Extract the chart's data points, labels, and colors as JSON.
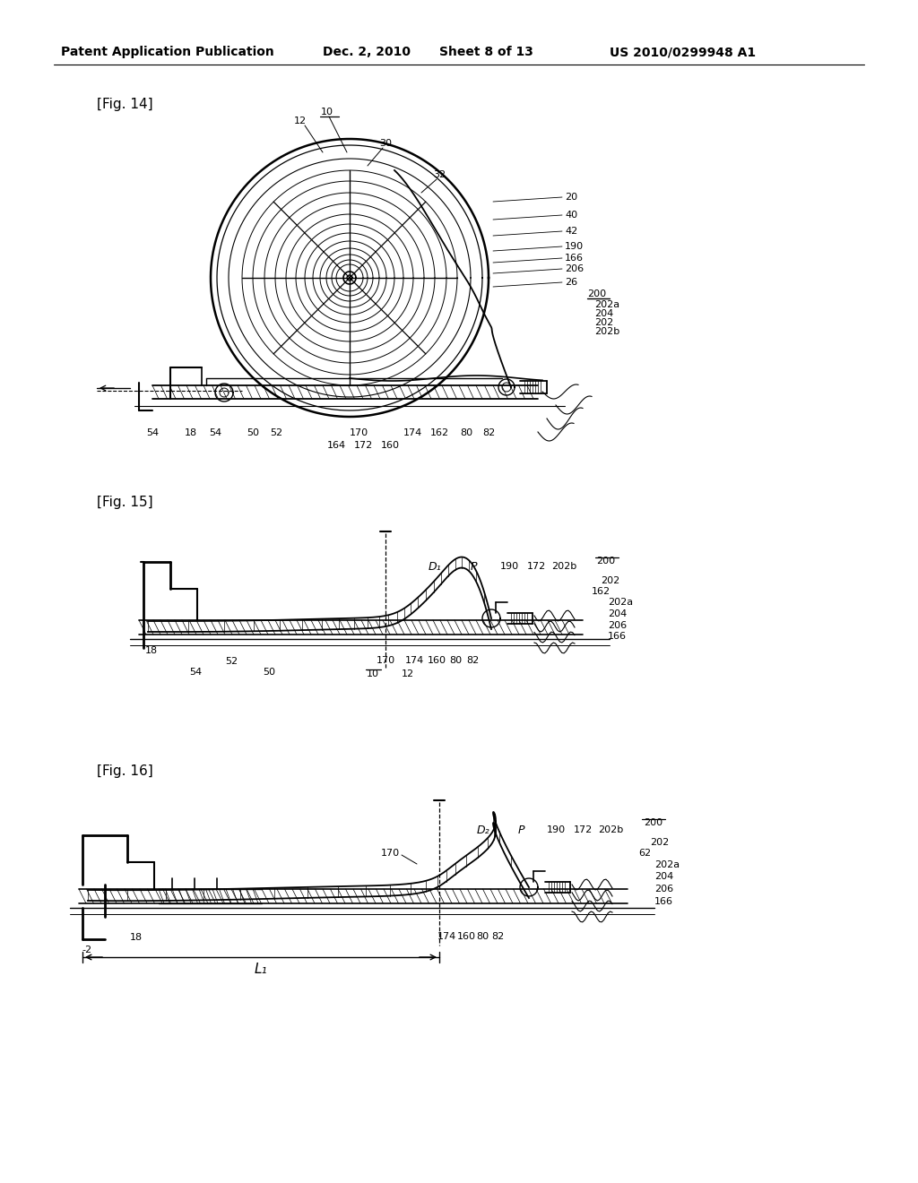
{
  "bg_color": "#ffffff",
  "title_line1": "Patent Application Publication",
  "title_line2": "Dec. 2, 2010",
  "title_line3": "Sheet 8 of 13",
  "title_line4": "US 2010/0299948 A1",
  "fig14_label": "[Fig. 14]",
  "fig15_label": "[Fig. 15]",
  "fig16_label": "[Fig. 16]"
}
